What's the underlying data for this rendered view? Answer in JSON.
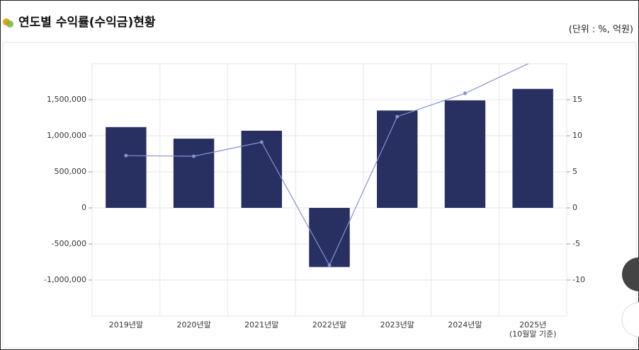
{
  "chart_data": {
    "type": "bar-line",
    "title": "연도별 수익률(수익금)현황",
    "unit": "(단위 : %, 억원)",
    "categories": [
      "2019년말",
      "2020년말",
      "2021년말",
      "2022년말",
      "2023년말",
      "2024년말",
      "2025년\n(10월말 기준)"
    ],
    "series": [
      {
        "type": "bar",
        "color": "#283061",
        "values": [
          1120000,
          960000,
          1070000,
          -820000,
          1350000,
          1490000,
          1650000
        ]
      },
      {
        "type": "line",
        "axis": "y2",
        "color": "#8491d4",
        "values": [
          7.25,
          7.16,
          9.12,
          -7.94,
          12.65,
          15.88,
          20.3
        ]
      }
    ],
    "ylim": [
      -1500000,
      2000000
    ],
    "yticks": [
      {
        "value": -1000000,
        "label": "-1,000,000"
      },
      {
        "value": -500000,
        "label": "-500,000"
      },
      0,
      {
        "value": 500000,
        "label": "500,000"
      },
      {
        "value": 1000000,
        "label": "1,000,000"
      },
      {
        "value": 1500000,
        "label": "1,500,000"
      }
    ],
    "y2lim": [
      -15,
      20
    ],
    "y2ticks": [
      -10,
      -5,
      0,
      5,
      10,
      15
    ],
    "grid": true
  }
}
